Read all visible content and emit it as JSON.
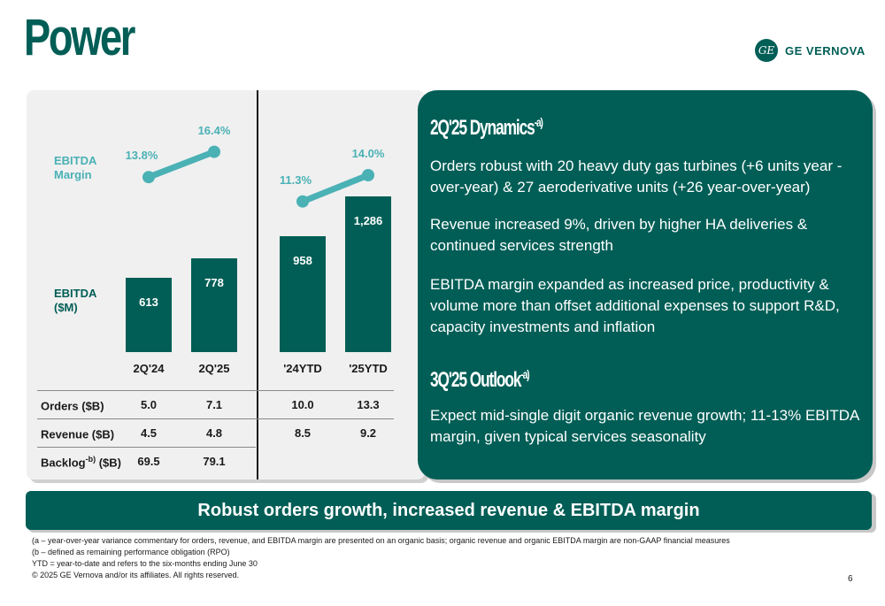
{
  "page": {
    "title": "Power",
    "page_number": "6"
  },
  "logo": {
    "mark": "GE",
    "text": "GE VERNOVA"
  },
  "left": {
    "label_margin": [
      "EBITDA",
      "Margin"
    ],
    "label_ebitda": [
      "EBITDA",
      "($M)"
    ],
    "categories": [
      "2Q'24",
      "2Q'25",
      "'24YTD",
      "'25YTD"
    ],
    "ebitda_values": [
      613,
      778,
      958,
      1286
    ],
    "ebitda_labels": [
      "613",
      "778",
      "958",
      "1,286"
    ],
    "margin_values": [
      13.8,
      16.4,
      11.3,
      14.0
    ],
    "margin_labels": [
      "13.8%",
      "16.4%",
      "11.3%",
      "14.0%"
    ],
    "table": {
      "rows": [
        {
          "label": "Orders ($B)",
          "sup": "",
          "suffix": "",
          "values": [
            "5.0",
            "7.1",
            "10.0",
            "13.3"
          ]
        },
        {
          "label": "Revenue ($B)",
          "sup": "",
          "suffix": "",
          "values": [
            "4.5",
            "4.8",
            "8.5",
            "9.2"
          ]
        },
        {
          "label": "Backlog",
          "sup": "-b)",
          "suffix": " ($B)",
          "values": [
            "69.5",
            "79.1",
            "",
            ""
          ]
        }
      ]
    }
  },
  "right": {
    "dynamics_title": "2Q'25 Dynamics",
    "dynamics_sup": "-a)",
    "dynamics": [
      "Orders robust with 20 heavy duty gas turbines (+6 units year -over-year) & 27 aeroderivative units (+26 year-over-year)",
      "Revenue increased 9%, driven by higher HA deliveries & continued services strength",
      "EBITDA margin expanded as increased price, productivity & volume more than offset additional expenses to support R&D, capacity investments and inflation"
    ],
    "outlook_title": "3Q'25 Outlook",
    "outlook_sup": "-a)",
    "outlook": "Expect mid-single digit organic revenue growth; 11-13% EBITDA margin, given typical services seasonality"
  },
  "banner": "Robust orders growth, increased revenue & EBITDA margin",
  "footnotes": [
    "(a – year-over-year variance commentary for orders, revenue, and EBITDA margin are presented on an organic basis; organic revenue and organic EBITDA margin are non-GAAP financial measures",
    "(b – defined as remaining performance obligation (RPO)",
    "YTD = year-to-date and refers to the six-months ending June 30",
    "© 2025 GE Vernova and/or its affiliates. All rights reserved."
  ],
  "colors": {
    "brand": "#005e56",
    "accent": "#4ab1b5"
  }
}
